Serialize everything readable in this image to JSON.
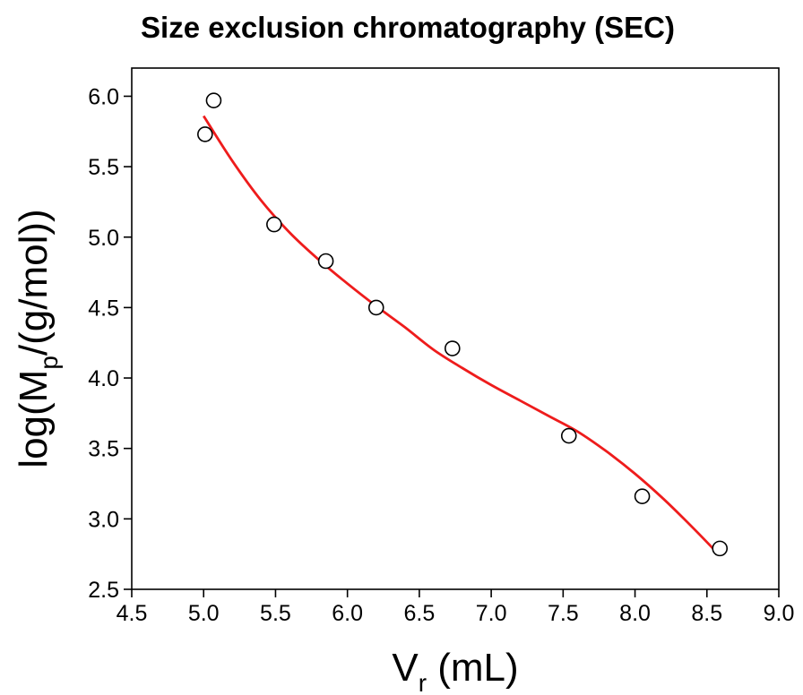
{
  "chart_data": {
    "type": "scatter",
    "title": "Size exclusion chromatography (SEC)",
    "xlabel": {
      "main": "V",
      "sub": "r",
      "rest": " (mL)"
    },
    "ylabel": {
      "main": "log(M",
      "sub": "p",
      "rest": "/(g/mol))"
    },
    "xlim": [
      4.5,
      9.0
    ],
    "ylim": [
      2.5,
      6.2
    ],
    "x_ticks": [
      "4.5",
      "5.0",
      "5.5",
      "6.0",
      "6.5",
      "7.0",
      "7.5",
      "8.0",
      "8.5",
      "9.0"
    ],
    "y_ticks": [
      "2.5",
      "3.0",
      "3.5",
      "4.0",
      "4.5",
      "5.0",
      "5.5",
      "6.0"
    ],
    "grid": false,
    "series": [
      {
        "kind": "points",
        "marker": "open-circle",
        "color": "#000000",
        "x": [
          5.01,
          5.07,
          5.49,
          5.85,
          6.2,
          6.73,
          7.54,
          8.05,
          8.59
        ],
        "y": [
          5.73,
          5.97,
          5.09,
          4.83,
          4.5,
          4.21,
          3.59,
          3.16,
          2.79
        ]
      },
      {
        "kind": "fit-line",
        "color": "#ee1c1c",
        "x": [
          5.0,
          5.2,
          5.4,
          5.6,
          5.8,
          6.0,
          6.2,
          6.4,
          6.6,
          6.8,
          7.0,
          7.2,
          7.4,
          7.6,
          7.8,
          8.0,
          8.2,
          8.4,
          8.58
        ],
        "y": [
          5.86,
          5.54,
          5.26,
          5.03,
          4.84,
          4.67,
          4.51,
          4.36,
          4.2,
          4.07,
          3.95,
          3.84,
          3.73,
          3.62,
          3.48,
          3.32,
          3.14,
          2.94,
          2.75
        ]
      }
    ]
  }
}
